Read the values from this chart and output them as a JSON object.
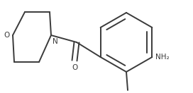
{
  "bg_color": "#ffffff",
  "line_color": "#3a3a3a",
  "line_width": 1.4,
  "text_color": "#3a3a3a",
  "label_O_morph": "O",
  "label_N": "N",
  "label_NH2": "NH₂",
  "label_CO_O": "O",
  "fig_width": 2.72,
  "fig_height": 1.32,
  "dpi": 100,
  "xlim": [
    0,
    272
  ],
  "ylim": [
    0,
    132
  ]
}
